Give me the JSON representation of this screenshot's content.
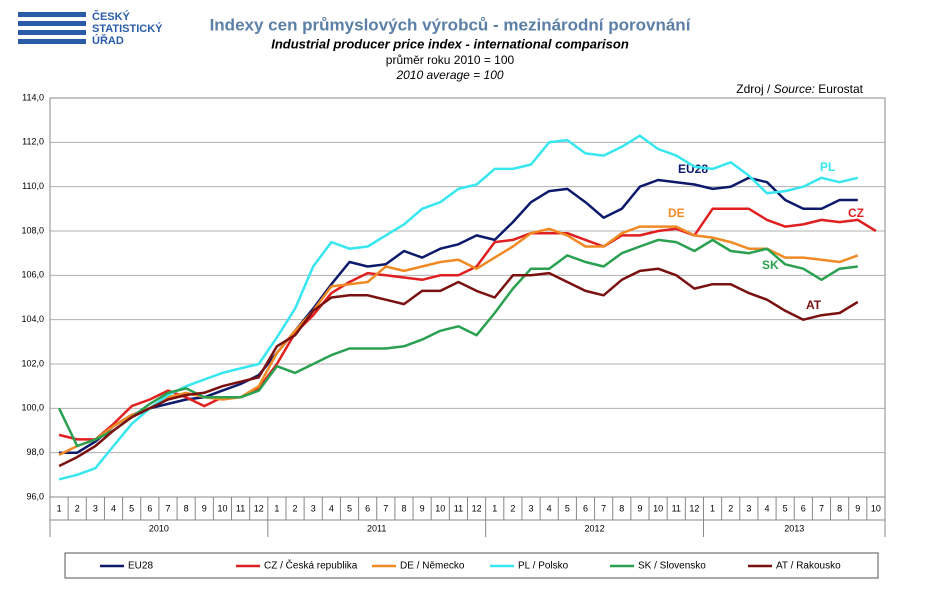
{
  "header": {
    "logo": [
      "ČESKÝ",
      "STATISTICKÝ",
      "ÚŘAD"
    ]
  },
  "chart_data": {
    "type": "line",
    "title": "Indexy cen průmyslových výrobců - mezinárodní porovnání",
    "subtitle": "Industrial producer price index - international comparison",
    "notes": [
      "průměr roku 2010 = 100",
      "2010 average = 100"
    ],
    "source": [
      "Zdroj / ",
      "Source:",
      " Eurostat"
    ],
    "categories": [
      "1",
      "2",
      "3",
      "4",
      "5",
      "6",
      "7",
      "8",
      "9",
      "10",
      "11",
      "12",
      "1",
      "2",
      "3",
      "4",
      "5",
      "6",
      "7",
      "8",
      "9",
      "10",
      "11",
      "12",
      "1",
      "2",
      "3",
      "4",
      "5",
      "6",
      "7",
      "8",
      "9",
      "10",
      "11",
      "12",
      "1",
      "2",
      "3",
      "4",
      "5",
      "6",
      "7",
      "8",
      "9",
      "10"
    ],
    "years": [
      "2010",
      "2011",
      "2012",
      "2013"
    ],
    "ylim": [
      96,
      114
    ],
    "yticks": [
      {
        "value": 96,
        "label": "96,0"
      },
      {
        "value": 98,
        "label": "98,0"
      },
      {
        "value": 100,
        "label": "100,0"
      },
      {
        "value": 102,
        "label": "102,0"
      },
      {
        "value": 104,
        "label": "104,0"
      },
      {
        "value": 106,
        "label": "106,0"
      },
      {
        "value": 108,
        "label": "108,0"
      },
      {
        "value": 110,
        "label": "110,0"
      },
      {
        "value": 112,
        "label": "112,0"
      },
      {
        "value": 114,
        "label": "114,0"
      }
    ],
    "grid": true,
    "legend": "bottom",
    "series": [
      {
        "name": "EU28",
        "label": "EU28",
        "color": "#0d1a6b",
        "values": [
          98.0,
          98.0,
          98.5,
          99.2,
          99.7,
          100.0,
          100.2,
          100.4,
          100.5,
          100.8,
          101.1,
          101.5,
          102.5,
          103.5,
          104.5,
          105.6,
          106.6,
          106.4,
          106.5,
          107.1,
          106.8,
          107.2,
          107.4,
          107.8,
          107.6,
          108.4,
          109.3,
          109.8,
          109.9,
          109.3,
          108.6,
          109.0,
          110.0,
          110.3,
          110.2,
          110.1,
          109.9,
          110.0,
          110.4,
          110.2,
          109.4,
          109.0,
          109.0,
          109.4,
          109.4,
          null
        ]
      },
      {
        "name": "CZ / Česká republika",
        "label": "CZ",
        "color": "#e02020",
        "values": [
          98.8,
          98.6,
          98.6,
          99.3,
          100.1,
          100.4,
          100.8,
          100.5,
          100.1,
          100.5,
          100.5,
          100.9,
          102.0,
          103.4,
          104.2,
          105.2,
          105.7,
          106.1,
          106.0,
          105.9,
          105.8,
          106.0,
          106.0,
          106.4,
          107.5,
          107.6,
          107.9,
          107.9,
          107.9,
          107.6,
          107.3,
          107.8,
          107.8,
          108.0,
          108.1,
          107.8,
          109.0,
          109.0,
          109.0,
          108.5,
          108.2,
          108.3,
          108.5,
          108.4,
          108.5,
          108.0
        ]
      },
      {
        "name": "DE / Německo",
        "label": "DE",
        "color": "#f08a24",
        "values": [
          97.9,
          98.3,
          98.6,
          99.2,
          99.7,
          100.0,
          100.5,
          100.7,
          100.5,
          100.4,
          100.5,
          101.0,
          102.5,
          103.5,
          104.4,
          105.5,
          105.6,
          105.7,
          106.4,
          106.2,
          106.4,
          106.6,
          106.7,
          106.3,
          106.8,
          107.3,
          107.9,
          108.1,
          107.8,
          107.3,
          107.3,
          107.9,
          108.2,
          108.2,
          108.2,
          107.8,
          107.7,
          107.5,
          107.2,
          107.2,
          106.8,
          106.8,
          106.7,
          106.6,
          106.9,
          null
        ]
      },
      {
        "name": "PL / Polsko",
        "label": "PL",
        "color": "#38e6f0",
        "values": [
          96.8,
          97.0,
          97.3,
          98.3,
          99.3,
          100.0,
          100.6,
          101.0,
          101.3,
          101.6,
          101.8,
          102.0,
          103.2,
          104.5,
          106.4,
          107.5,
          107.2,
          107.3,
          107.8,
          108.3,
          109.0,
          109.3,
          109.9,
          110.1,
          110.8,
          110.8,
          111.0,
          112.0,
          112.1,
          111.5,
          111.4,
          111.8,
          112.3,
          111.7,
          111.4,
          110.9,
          110.8,
          111.1,
          110.5,
          109.7,
          109.8,
          110.0,
          110.4,
          110.2,
          110.4,
          null
        ]
      },
      {
        "name": "SK / Slovensko",
        "label": "SK",
        "color": "#2aa050",
        "values": [
          100.0,
          98.3,
          98.6,
          99.0,
          99.6,
          100.2,
          100.7,
          100.9,
          100.5,
          100.5,
          100.5,
          100.8,
          101.9,
          101.6,
          102.0,
          102.4,
          102.7,
          102.7,
          102.7,
          102.8,
          103.1,
          103.5,
          103.7,
          103.3,
          104.3,
          105.4,
          106.3,
          106.3,
          106.9,
          106.6,
          106.4,
          107.0,
          107.3,
          107.6,
          107.5,
          107.1,
          107.6,
          107.1,
          107.0,
          107.2,
          106.5,
          106.3,
          105.8,
          106.3,
          106.4,
          null
        ]
      },
      {
        "name": "AT / Rakousko",
        "label": "AT",
        "color": "#7a1010",
        "values": [
          97.4,
          97.8,
          98.3,
          99.0,
          99.6,
          100.0,
          100.4,
          100.6,
          100.7,
          101.0,
          101.2,
          101.4,
          102.8,
          103.3,
          104.4,
          105.0,
          105.1,
          105.1,
          104.9,
          104.7,
          105.3,
          105.3,
          105.7,
          105.3,
          105.0,
          106.0,
          106.0,
          106.1,
          105.7,
          105.3,
          105.1,
          105.8,
          106.2,
          106.3,
          106.0,
          105.4,
          105.6,
          105.6,
          105.2,
          104.9,
          104.4,
          104.0,
          104.2,
          104.3,
          104.8,
          null
        ]
      }
    ]
  }
}
